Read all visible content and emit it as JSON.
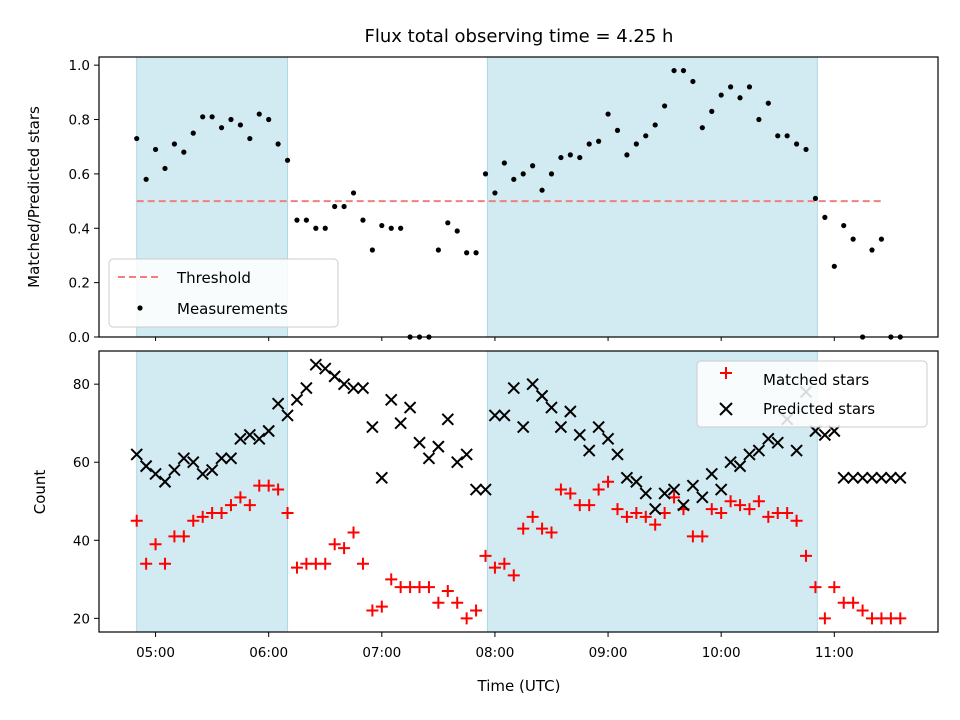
{
  "title": "Flux total observing time = 4.25 h",
  "colors": {
    "span": "#add8e6",
    "threshold": "#f08080",
    "measurement": "#000000",
    "matched": "#ff0000",
    "predicted": "#000000"
  },
  "chart_data": [
    {
      "type": "scatter",
      "ylabel": "Matched/Predicted stars",
      "xlabel": "",
      "xlim": [
        "04:30",
        "11:55"
      ],
      "ylim": [
        0,
        1.03
      ],
      "y_ticks": [
        "0.0",
        "0.2",
        "0.4",
        "0.6",
        "0.8",
        "1.0"
      ],
      "shaded_spans": [
        [
          "04:50",
          "06:10"
        ],
        [
          "07:56",
          "10:51"
        ]
      ],
      "legend": {
        "position": "lower left",
        "entries": [
          "Threshold",
          "Measurements"
        ]
      },
      "series": [
        {
          "name": "Threshold",
          "kind": "dashed-line",
          "x": [
            "04:50",
            "11:25"
          ],
          "y": [
            0.5,
            0.5
          ]
        },
        {
          "name": "Measurements",
          "kind": "dots",
          "x": [
            "04:50",
            "04:55",
            "05:00",
            "05:05",
            "05:10",
            "05:15",
            "05:20",
            "05:25",
            "05:30",
            "05:35",
            "05:40",
            "05:45",
            "05:50",
            "05:55",
            "06:00",
            "06:05",
            "06:10",
            "06:15",
            "06:20",
            "06:25",
            "06:30",
            "06:35",
            "06:40",
            "06:45",
            "06:50",
            "06:55",
            "07:00",
            "07:05",
            "07:10",
            "07:15",
            "07:20",
            "07:25",
            "07:30",
            "07:35",
            "07:40",
            "07:45",
            "07:50",
            "07:55",
            "08:00",
            "08:05",
            "08:10",
            "08:15",
            "08:20",
            "08:25",
            "08:30",
            "08:35",
            "08:40",
            "08:45",
            "08:50",
            "08:55",
            "09:00",
            "09:05",
            "09:10",
            "09:15",
            "09:20",
            "09:25",
            "09:30",
            "09:35",
            "09:40",
            "09:45",
            "09:50",
            "09:55",
            "10:00",
            "10:05",
            "10:10",
            "10:15",
            "10:20",
            "10:25",
            "10:30",
            "10:35",
            "10:40",
            "10:45",
            "10:50",
            "10:55",
            "11:00",
            "11:05",
            "11:10",
            "11:15",
            "11:20",
            "11:25",
            "11:30",
            "11:35"
          ],
          "y": [
            0.73,
            0.58,
            0.69,
            0.62,
            0.71,
            0.68,
            0.75,
            0.81,
            0.81,
            0.77,
            0.8,
            0.78,
            0.73,
            0.82,
            0.8,
            0.71,
            0.65,
            0.43,
            0.43,
            0.4,
            0.4,
            0.48,
            0.48,
            0.53,
            0.43,
            0.32,
            0.41,
            0.4,
            0.4,
            0.0,
            0.0,
            0.0,
            0.32,
            0.42,
            0.39,
            0.31,
            0.31,
            0.6,
            0.53,
            0.64,
            0.58,
            0.6,
            0.63,
            0.54,
            0.6,
            0.66,
            0.67,
            0.66,
            0.71,
            0.72,
            0.82,
            0.76,
            0.67,
            0.71,
            0.74,
            0.78,
            0.85,
            0.98,
            0.98,
            0.94,
            0.77,
            0.83,
            0.89,
            0.92,
            0.88,
            0.92,
            0.8,
            0.86,
            0.74,
            0.74,
            0.71,
            0.69,
            0.51,
            0.44,
            0.26,
            0.41,
            0.36,
            0.0,
            0.32,
            0.36,
            0.0,
            0.0
          ]
        }
      ]
    },
    {
      "type": "scatter",
      "ylabel": "Count",
      "xlabel": "Time (UTC)",
      "xlim": [
        "04:30",
        "11:55"
      ],
      "ylim": [
        16.5,
        88.5
      ],
      "y_ticks": [
        "20",
        "40",
        "60",
        "80"
      ],
      "x_ticks": [
        "05:00",
        "06:00",
        "07:00",
        "08:00",
        "09:00",
        "10:00",
        "11:00"
      ],
      "shaded_spans": [
        [
          "04:50",
          "06:10"
        ],
        [
          "07:56",
          "10:51"
        ]
      ],
      "legend": {
        "position": "top-right",
        "entries": [
          "Matched stars",
          "Predicted stars"
        ]
      },
      "series": [
        {
          "name": "Matched stars",
          "marker": "plus",
          "x": [
            "04:50",
            "04:55",
            "05:00",
            "05:05",
            "05:10",
            "05:15",
            "05:20",
            "05:25",
            "05:30",
            "05:35",
            "05:40",
            "05:45",
            "05:50",
            "05:55",
            "06:00",
            "06:05",
            "06:10",
            "06:15",
            "06:20",
            "06:25",
            "06:30",
            "06:35",
            "06:40",
            "06:45",
            "06:50",
            "06:55",
            "07:00",
            "07:05",
            "07:10",
            "07:15",
            "07:20",
            "07:25",
            "07:30",
            "07:35",
            "07:40",
            "07:45",
            "07:50",
            "07:55",
            "08:00",
            "08:05",
            "08:10",
            "08:15",
            "08:20",
            "08:25",
            "08:30",
            "08:35",
            "08:40",
            "08:45",
            "08:50",
            "08:55",
            "09:00",
            "09:05",
            "09:10",
            "09:15",
            "09:20",
            "09:25",
            "09:30",
            "09:35",
            "09:40",
            "09:45",
            "09:50",
            "09:55",
            "10:00",
            "10:05",
            "10:10",
            "10:15",
            "10:20",
            "10:25",
            "10:30",
            "10:35",
            "10:40",
            "10:45",
            "10:50",
            "10:55",
            "11:00",
            "11:05",
            "11:10",
            "11:15",
            "11:20",
            "11:25",
            "11:30",
            "11:35"
          ],
          "y": [
            45,
            34,
            39,
            34,
            41,
            41,
            45,
            46,
            47,
            47,
            49,
            51,
            49,
            54,
            54,
            53,
            47,
            33,
            34,
            34,
            34,
            39,
            38,
            42,
            34,
            22,
            23,
            30,
            28,
            28,
            28,
            28,
            24,
            27,
            24,
            20,
            22,
            36,
            33,
            34,
            31,
            43,
            46,
            43,
            42,
            53,
            52,
            49,
            49,
            53,
            55,
            48,
            46,
            47,
            46,
            44,
            47,
            51,
            48,
            41,
            41,
            48,
            47,
            50,
            49,
            48,
            50,
            46,
            47,
            47,
            45,
            36,
            28,
            20,
            28,
            24,
            24,
            22,
            20,
            20,
            20,
            20
          ]
        },
        {
          "name": "Predicted stars",
          "marker": "x",
          "x": [
            "04:50",
            "04:55",
            "05:00",
            "05:05",
            "05:10",
            "05:15",
            "05:20",
            "05:25",
            "05:30",
            "05:35",
            "05:40",
            "05:45",
            "05:50",
            "05:55",
            "06:00",
            "06:05",
            "06:10",
            "06:15",
            "06:20",
            "06:25",
            "06:30",
            "06:35",
            "06:40",
            "06:45",
            "06:50",
            "06:55",
            "07:00",
            "07:05",
            "07:10",
            "07:15",
            "07:20",
            "07:25",
            "07:30",
            "07:35",
            "07:40",
            "07:45",
            "07:50",
            "07:55",
            "08:00",
            "08:05",
            "08:10",
            "08:15",
            "08:20",
            "08:25",
            "08:30",
            "08:35",
            "08:40",
            "08:45",
            "08:50",
            "08:55",
            "09:00",
            "09:05",
            "09:10",
            "09:15",
            "09:20",
            "09:25",
            "09:30",
            "09:35",
            "09:40",
            "09:45",
            "09:50",
            "09:55",
            "10:00",
            "10:05",
            "10:10",
            "10:15",
            "10:20",
            "10:25",
            "10:30",
            "10:35",
            "10:40",
            "10:45",
            "10:50",
            "10:55",
            "11:00",
            "11:05",
            "11:10",
            "11:15",
            "11:20",
            "11:25",
            "11:30",
            "11:35"
          ],
          "y": [
            62,
            59,
            57,
            55,
            58,
            61,
            60,
            57,
            58,
            61,
            61,
            66,
            67,
            66,
            68,
            75,
            72,
            76,
            79,
            85,
            84,
            82,
            80,
            79,
            79,
            69,
            56,
            76,
            70,
            74,
            65,
            61,
            64,
            71,
            60,
            62,
            53,
            53,
            72,
            72,
            79,
            69,
            80,
            77,
            74,
            69,
            73,
            67,
            63,
            69,
            66,
            62,
            56,
            55,
            52,
            48,
            52,
            53,
            49,
            54,
            51,
            57,
            53,
            60,
            59,
            62,
            63,
            66,
            65,
            71,
            63,
            78,
            68,
            67,
            68,
            56,
            56,
            56,
            56,
            56,
            56,
            56
          ]
        }
      ]
    }
  ],
  "labels": {
    "title": "Flux total observing time = 4.25 h",
    "ylabel_top": "Matched/Predicted stars",
    "ylabel_bottom": "Count",
    "xlabel": "Time (UTC)",
    "legend_top": [
      "Threshold",
      "Measurements"
    ],
    "legend_bottom": [
      "Matched stars",
      "Predicted stars"
    ]
  }
}
